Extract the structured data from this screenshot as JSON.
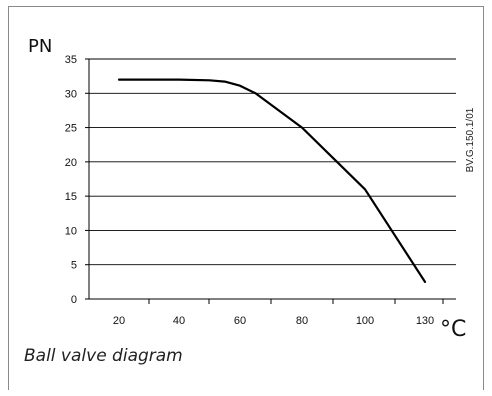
{
  "chart_data": {
    "type": "line",
    "ylabel": "PN",
    "xlabel": "°C",
    "side_label": "BV.G.150.1/01",
    "caption": "Ball valve diagram",
    "x_ticks": [
      "20",
      "40",
      "60",
      "80",
      "100",
      "130"
    ],
    "y_ticks": [
      0,
      5,
      10,
      15,
      20,
      25,
      30,
      35
    ],
    "ylim": [
      0,
      35
    ],
    "grid": true,
    "series": [
      {
        "points": [
          [
            20,
            32
          ],
          [
            30,
            32
          ],
          [
            40,
            32
          ],
          [
            50,
            31.9
          ],
          [
            55,
            31.7
          ],
          [
            60,
            31.1
          ],
          [
            65,
            30
          ],
          [
            80,
            25
          ],
          [
            100,
            16
          ],
          [
            130,
            2.5
          ]
        ]
      }
    ]
  }
}
